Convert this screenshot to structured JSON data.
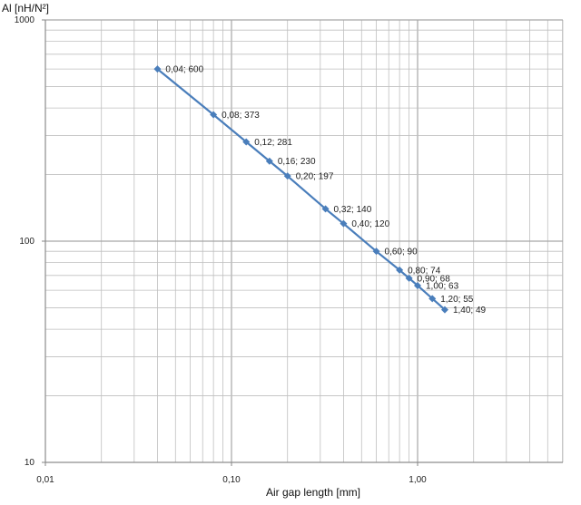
{
  "chart_data": {
    "type": "line",
    "xlabel": "Air gap length [mm]",
    "ylabel": "Al [nH/N²]",
    "x_scale": "log",
    "y_scale": "log",
    "xlim": [
      0.01,
      6
    ],
    "ylim": [
      10,
      1000
    ],
    "grid": true,
    "x_ticks": [
      "0,01",
      "0,10",
      "1,00"
    ],
    "y_ticks": [
      "10",
      "100",
      "1000"
    ],
    "colors": {
      "series": "#4a7ebb",
      "grid": "#bfbfbf",
      "axis": "#868686"
    },
    "series": [
      {
        "x": [
          0.04,
          0.08,
          0.12,
          0.16,
          0.2,
          0.32,
          0.4,
          0.6,
          0.8,
          0.9,
          1.0,
          1.2,
          1.4
        ],
        "y": [
          600,
          373,
          281,
          230,
          197,
          140,
          120,
          90,
          74,
          68,
          63,
          55,
          49
        ],
        "labels": [
          "0,04; 600",
          "0,08; 373",
          "0,12; 281",
          "0,16; 230",
          "0,20; 197",
          "0,32; 140",
          "0,40; 120",
          "0,60; 90",
          "0,80; 74",
          "0,90; 68",
          "1,00; 63",
          "1,20; 55",
          "1,40; 49"
        ]
      }
    ]
  }
}
